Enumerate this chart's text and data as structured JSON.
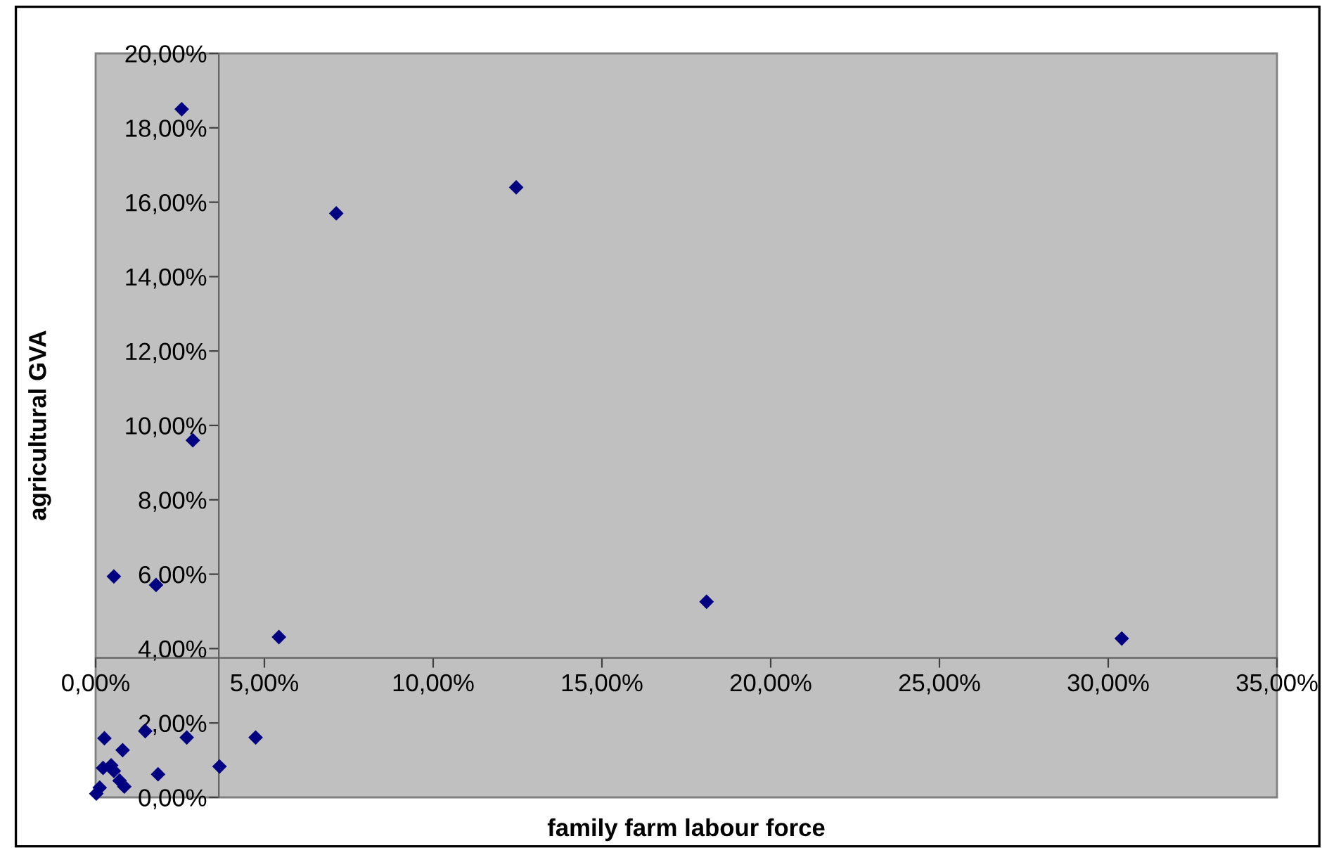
{
  "chart_data": {
    "type": "scatter",
    "xlabel": "family farm labour force",
    "ylabel": "agricultural GVA",
    "marker": "diamond",
    "grid": false,
    "legend": false,
    "x": [
      2.55,
      7.13,
      12.46,
      2.88,
      0.54,
      1.79,
      5.43,
      18.1,
      30.4,
      0.26,
      1.47,
      2.7,
      4.74,
      0.8,
      0.22,
      0.46,
      0.54,
      3.67,
      1.85,
      0.71,
      0.85,
      0.12,
      0.02
    ],
    "series": [
      {
        "color": "#000080",
        "values": [
          18.5,
          15.7,
          16.4,
          9.6,
          5.94,
          5.71,
          4.31,
          5.26,
          4.27,
          1.59,
          1.78,
          1.61,
          1.61,
          1.27,
          0.79,
          0.86,
          0.71,
          0.83,
          0.62,
          0.45,
          0.29,
          0.26,
          0.1
        ]
      }
    ],
    "xlim": [
      0,
      35
    ],
    "ylim": [
      0,
      20
    ],
    "xticks": [
      {
        "value": 0,
        "label": "0,00%"
      },
      {
        "value": 5,
        "label": "5,00%"
      },
      {
        "value": 10,
        "label": "10,00%"
      },
      {
        "value": 15,
        "label": "15,00%"
      },
      {
        "value": 20,
        "label": "20,00%"
      },
      {
        "value": 25,
        "label": "25,00%"
      },
      {
        "value": 30,
        "label": "30,00%"
      },
      {
        "value": 35,
        "label": "35,00%"
      }
    ],
    "yticks": [
      {
        "value": 0,
        "label": "0,00%"
      },
      {
        "value": 2,
        "label": "2,00%"
      },
      {
        "value": 4,
        "label": "4,00%"
      },
      {
        "value": 6,
        "label": "6,00%"
      },
      {
        "value": 8,
        "label": "8,00%"
      },
      {
        "value": 10,
        "label": "10,00%"
      },
      {
        "value": 12,
        "label": "12,00%"
      },
      {
        "value": 14,
        "label": "14,00%"
      },
      {
        "value": 16,
        "label": "16,00%"
      },
      {
        "value": 18,
        "label": "18,00%"
      },
      {
        "value": 20,
        "label": "20,00%"
      }
    ]
  }
}
